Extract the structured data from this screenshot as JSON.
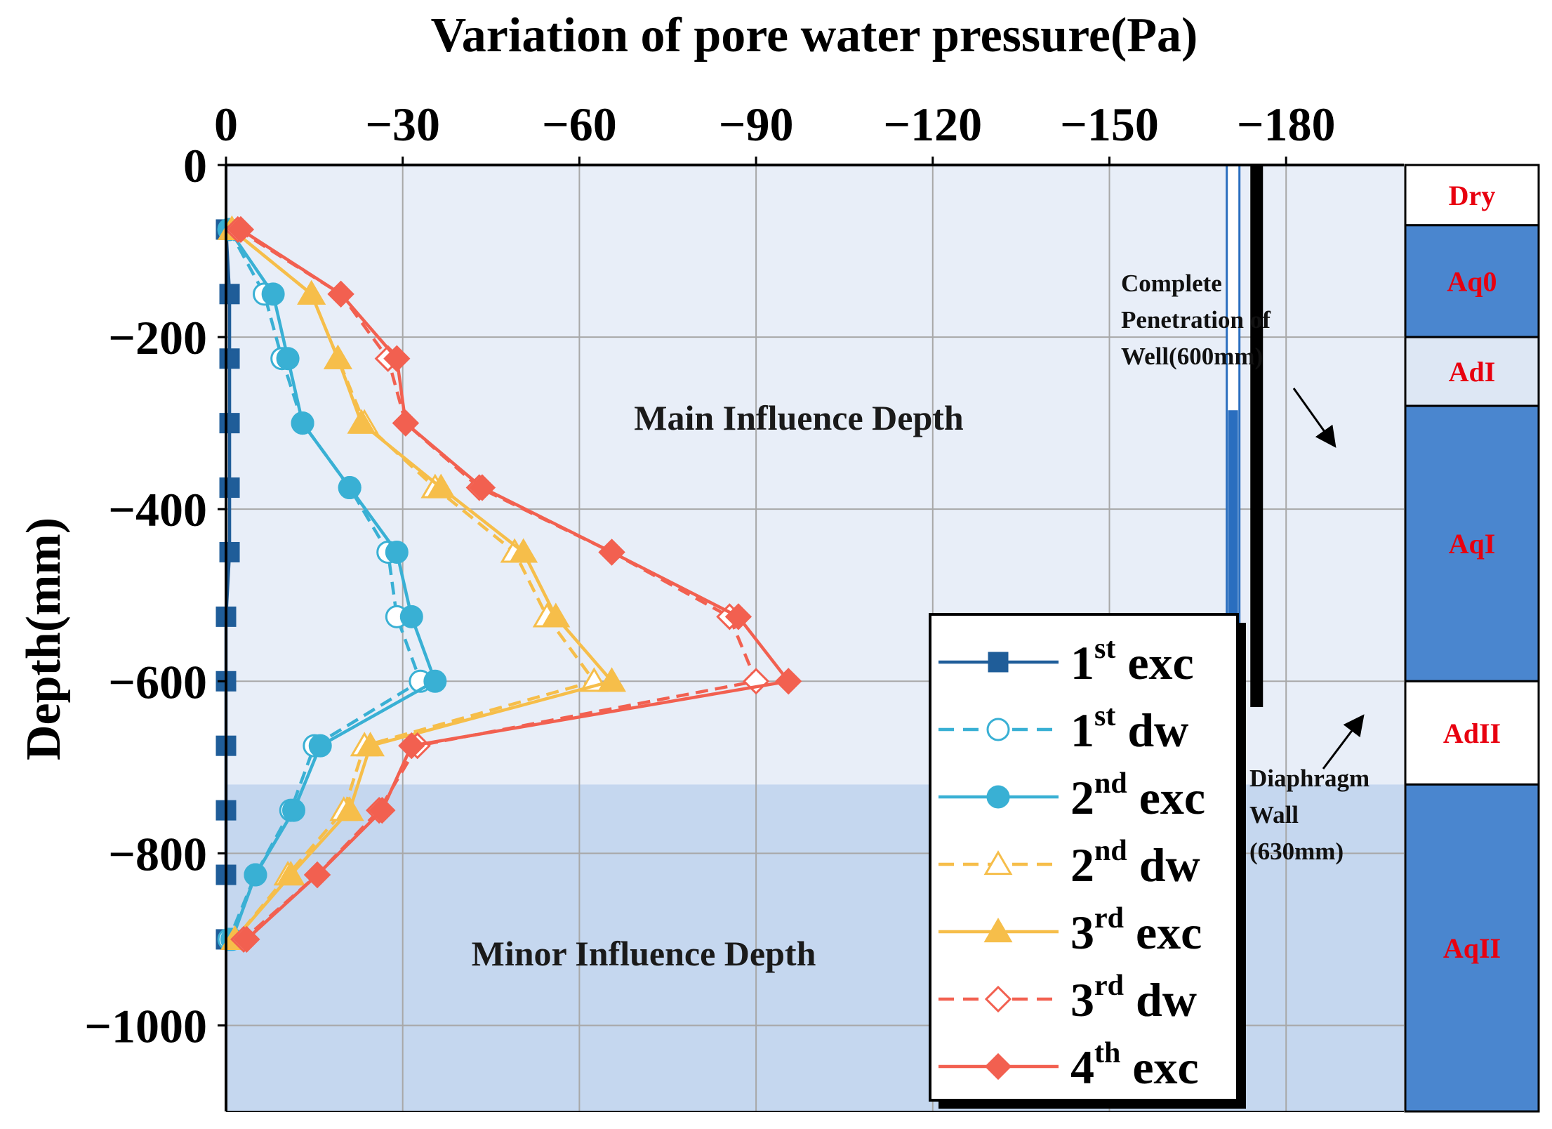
{
  "chart_data": {
    "type": "line",
    "title": "Variation of pore water pressure(Pa)",
    "xlabel": "Variation of pore water pressure(Pa)",
    "ylabel": "Depth(mm)",
    "xlim": [
      0,
      -200
    ],
    "ylim": [
      -1100,
      0
    ],
    "xticks": [
      0,
      -30,
      -60,
      -90,
      -120,
      -150,
      -180
    ],
    "yticks": [
      0,
      -200,
      -400,
      -600,
      -800,
      -1000
    ],
    "xtick_labels": [
      "0",
      "−30",
      "−60",
      "−90",
      "−120",
      "−150",
      "−180"
    ],
    "ytick_labels": [
      "0",
      "−200",
      "−400",
      "−600",
      "−800",
      "−1000"
    ],
    "grid": true,
    "zones": [
      {
        "label": "Main Influence Depth",
        "y_from": 0,
        "y_to": -720
      },
      {
        "label": "Minor Influence Depth",
        "y_from": -720,
        "y_to": -1100
      }
    ],
    "series": [
      {
        "name": "1st exc",
        "base": "1",
        "sup": "st",
        "suffix": "exc",
        "color": "#1f5d99",
        "dash": false,
        "marker": "square",
        "filled": true,
        "x": [
          0,
          -0.6,
          -0.6,
          -0.6,
          -0.6,
          -0.6,
          0,
          0,
          0,
          0,
          0,
          0
        ],
        "y": [
          -75,
          -150,
          -225,
          -300,
          -375,
          -450,
          -525,
          -600,
          -675,
          -750,
          -825,
          -900
        ]
      },
      {
        "name": "1st dw",
        "base": "1",
        "sup": "st",
        "suffix": "dw",
        "color": "#39b0d4",
        "dash": true,
        "marker": "circle",
        "filled": false,
        "x": [
          -0.5,
          -6.5,
          -9.5,
          -13,
          -21,
          -27.5,
          -29,
          -33,
          -15,
          -11,
          -5,
          -0.5
        ],
        "y": [
          -75,
          -150,
          -225,
          -300,
          -375,
          -450,
          -525,
          -600,
          -675,
          -750,
          -825,
          -900
        ]
      },
      {
        "name": "2nd exc",
        "base": "2",
        "sup": "nd",
        "suffix": "exc",
        "color": "#39b0d4",
        "dash": false,
        "marker": "circle",
        "filled": true,
        "x": [
          -0.5,
          -8,
          -10.5,
          -13,
          -21,
          -29,
          -31.5,
          -35.5,
          -16,
          -11.5,
          -5,
          -1
        ],
        "y": [
          -75,
          -150,
          -225,
          -300,
          -375,
          -450,
          -525,
          -600,
          -675,
          -750,
          -825,
          -900
        ]
      },
      {
        "name": "2nd dw",
        "base": "2",
        "sup": "nd",
        "suffix": "dw",
        "color": "#f6be4a",
        "dash": true,
        "marker": "triangle",
        "filled": false,
        "x": [
          -1,
          -14.5,
          -19,
          -23.5,
          -35.5,
          -49,
          -54.5,
          -62.5,
          -23.5,
          -20,
          -10.5,
          -1.5
        ],
        "y": [
          -75,
          -150,
          -225,
          -300,
          -375,
          -450,
          -525,
          -600,
          -675,
          -750,
          -825,
          -900
        ]
      },
      {
        "name": "3rd exc",
        "base": "3",
        "sup": "rd",
        "suffix": "exc",
        "color": "#f6be4a",
        "dash": false,
        "marker": "triangle",
        "filled": true,
        "x": [
          -1,
          -14.5,
          -19,
          -23,
          -36.5,
          -50.5,
          -56,
          -65.5,
          -24.5,
          -21,
          -11,
          -1.5
        ],
        "y": [
          -75,
          -150,
          -225,
          -300,
          -375,
          -450,
          -525,
          -600,
          -675,
          -750,
          -825,
          -900
        ]
      },
      {
        "name": "3rd dw",
        "base": "3",
        "sup": "rd",
        "suffix": "dw",
        "color": "#f26050",
        "dash": true,
        "marker": "diamond",
        "filled": false,
        "x": [
          -2,
          -19.5,
          -27.5,
          -30.5,
          -43,
          -65.5,
          -85.5,
          -90,
          -32.5,
          -26,
          -15.5,
          -3
        ],
        "y": [
          -75,
          -150,
          -225,
          -300,
          -375,
          -450,
          -525,
          -600,
          -675,
          -750,
          -825,
          -900
        ]
      },
      {
        "name": "4th exc",
        "base": "4",
        "sup": "th",
        "suffix": "exc",
        "color": "#f26050",
        "dash": false,
        "marker": "diamond",
        "filled": true,
        "x": [
          -2.5,
          -19.5,
          -29,
          -30.5,
          -43.5,
          -65.5,
          -87,
          -95.5,
          -31.5,
          -26.5,
          -15.5,
          -3.5
        ],
        "y": [
          -75,
          -150,
          -225,
          -300,
          -375,
          -450,
          -525,
          -600,
          -675,
          -750,
          -825,
          -900
        ]
      }
    ],
    "well": {
      "label_lines": [
        "Complete",
        "Penetration of",
        "Well(600mm)"
      ],
      "depth": -600,
      "x_center": -171,
      "color": "#2a6ebf"
    },
    "wall": {
      "label_lines": [
        "Diaphragm",
        "Wall",
        "(630mm)"
      ],
      "depth": -630,
      "x_center": -175,
      "color": "#000000"
    },
    "strata": [
      {
        "label": "Dry",
        "top": 0,
        "bottom": -70,
        "fill": "#ffffff"
      },
      {
        "label": "Aq0",
        "top": -70,
        "bottom": -200,
        "fill": "#4a86cf"
      },
      {
        "label": "AdI",
        "top": -200,
        "bottom": -280,
        "fill": "#dde7f4"
      },
      {
        "label": "AqI",
        "top": -280,
        "bottom": -600,
        "fill": "#4a86cf"
      },
      {
        "label": "AdII",
        "top": -600,
        "bottom": -720,
        "fill": "#ffffff"
      },
      {
        "label": "AqII",
        "top": -720,
        "bottom": -1100,
        "fill": "#4a86cf"
      }
    ]
  }
}
